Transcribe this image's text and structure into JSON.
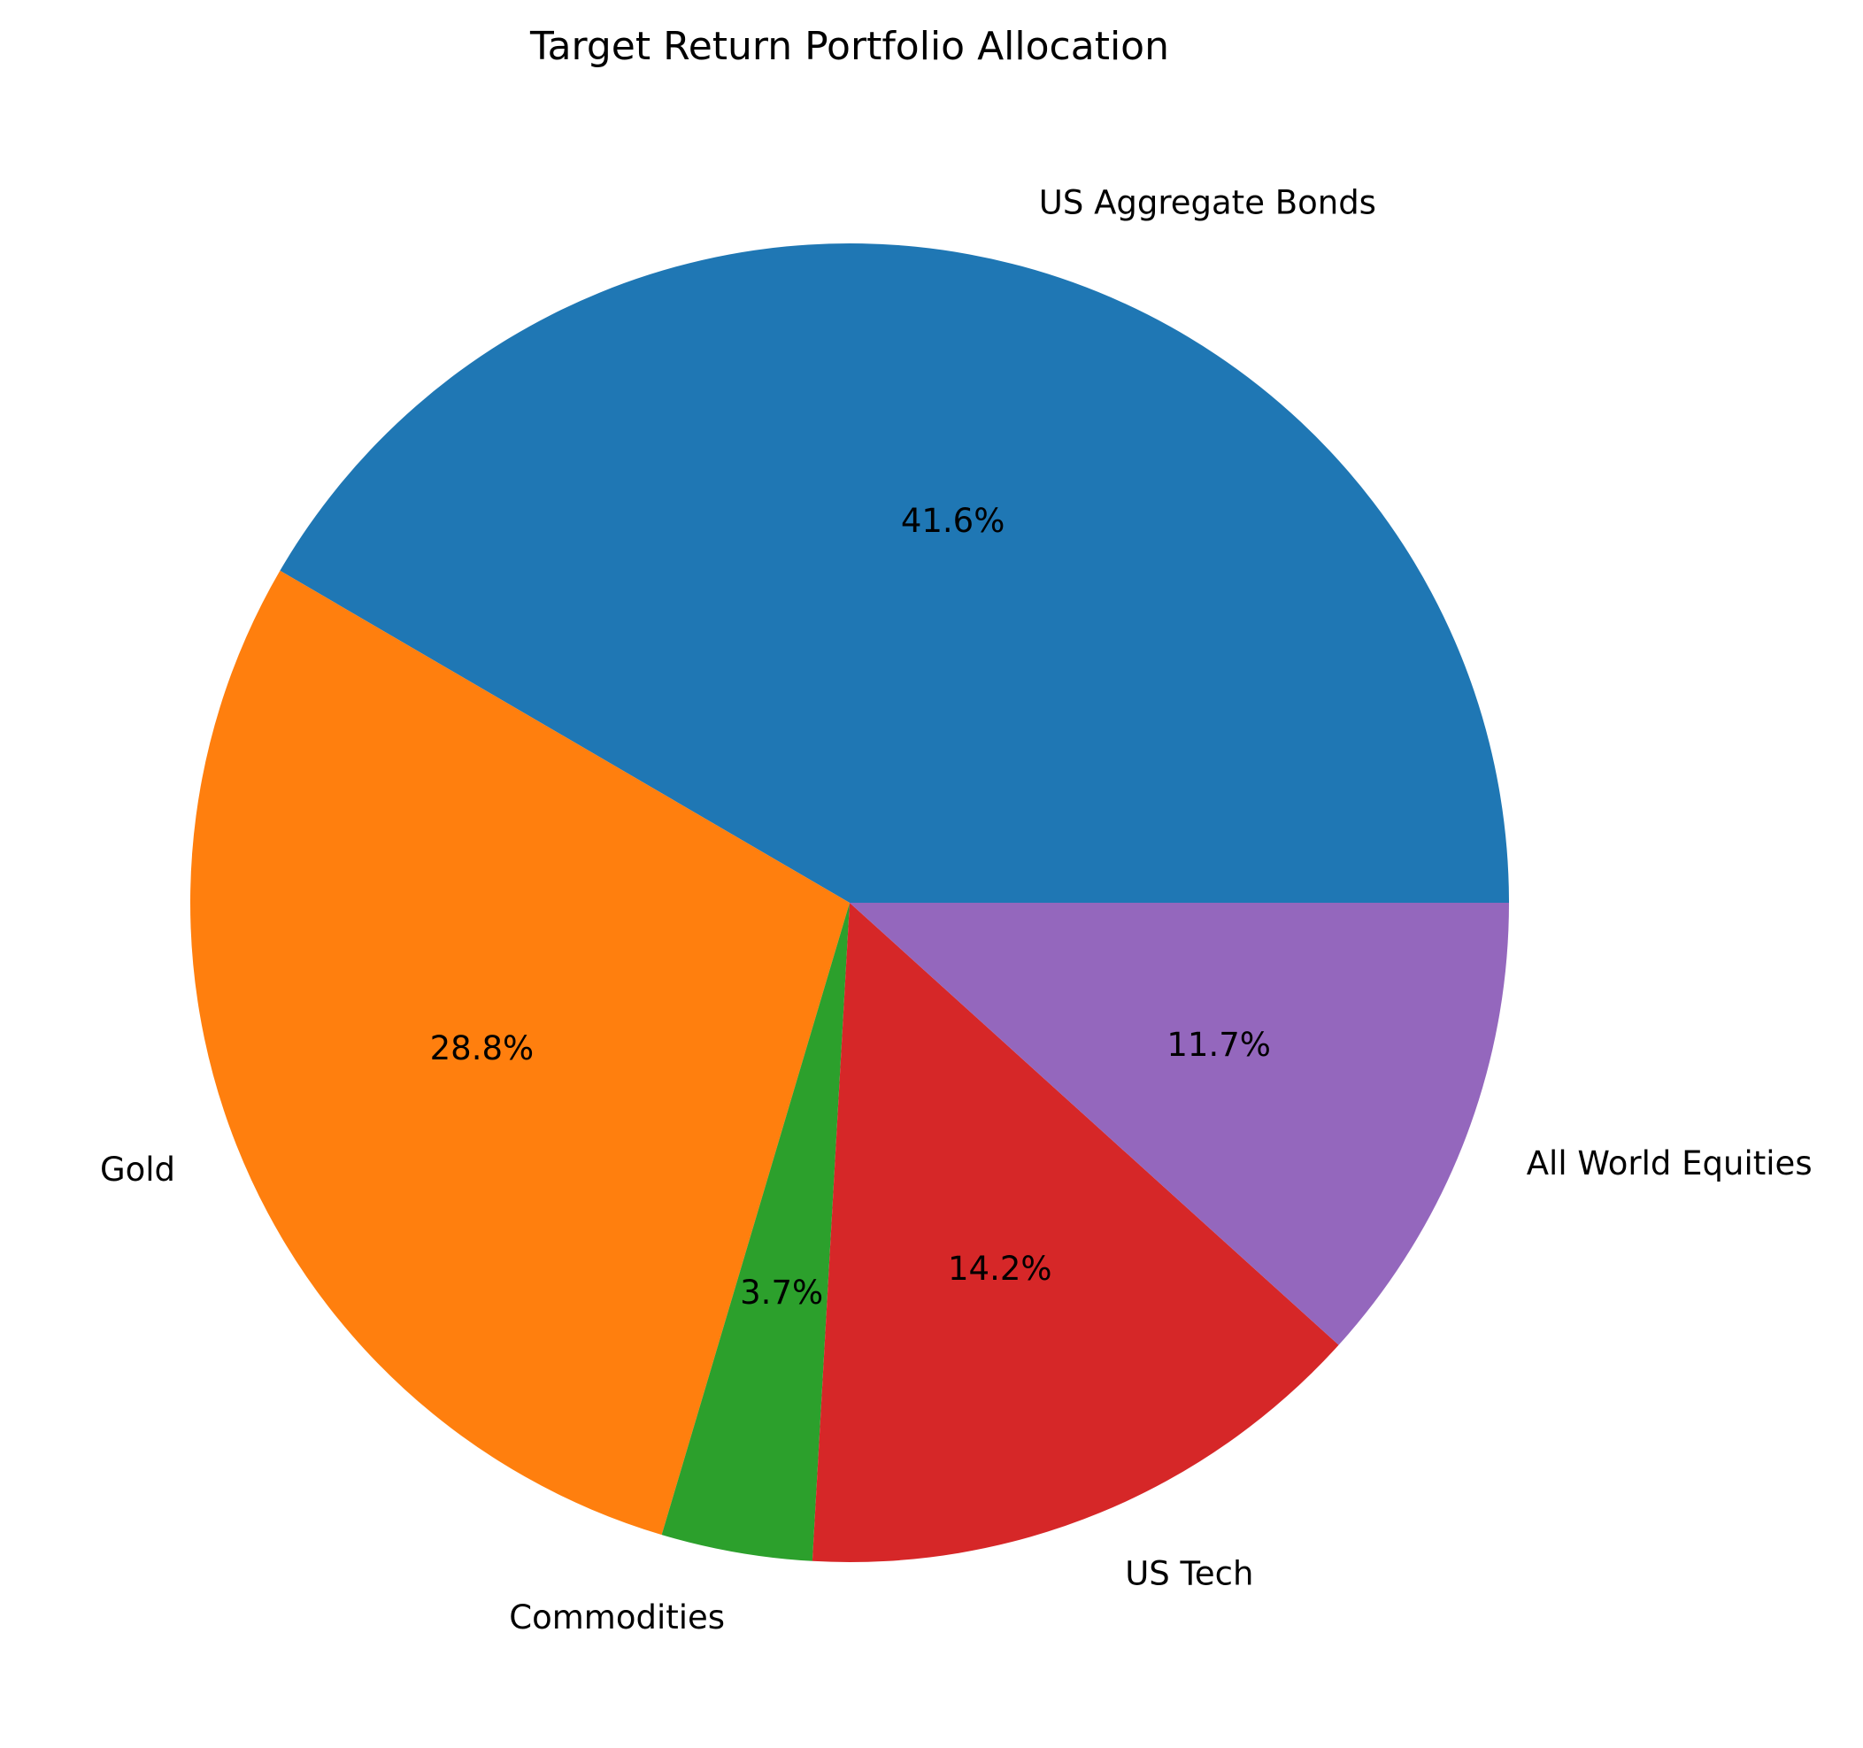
{
  "chart_data": {
    "type": "pie",
    "title": "Target Return Portfolio Allocation",
    "start_angle_deg": 0,
    "direction": "counterclockwise",
    "slices": [
      {
        "label": "US Aggregate Bonds",
        "value": 41.6,
        "pct_label": "41.6%",
        "color": "#1f77b4"
      },
      {
        "label": "Gold",
        "value": 28.8,
        "pct_label": "28.8%",
        "color": "#ff7f0e"
      },
      {
        "label": "Commodities",
        "value": 3.7,
        "pct_label": "3.7%",
        "color": "#2ca02c"
      },
      {
        "label": "US Tech",
        "value": 14.2,
        "pct_label": "14.2%",
        "color": "#d62728"
      },
      {
        "label": "All World Equities",
        "value": 11.7,
        "pct_label": "11.7%",
        "color": "#9467bd"
      }
    ]
  }
}
